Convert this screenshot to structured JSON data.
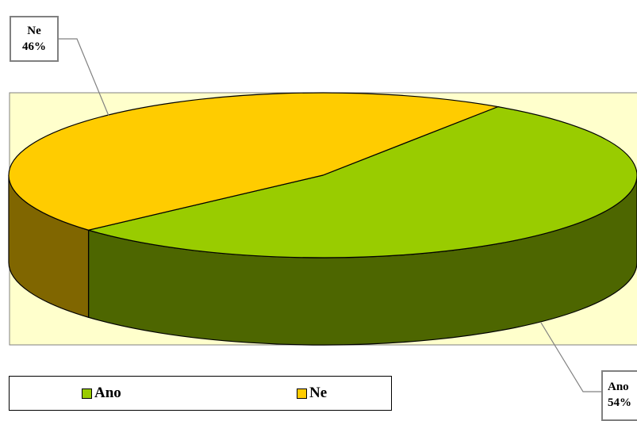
{
  "chart_data": {
    "type": "pie",
    "three_d": true,
    "title": "",
    "slices": [
      {
        "name": "Ano",
        "value": 54,
        "label": "54%",
        "color": "#99CC00",
        "side_color": "#4D6600"
      },
      {
        "name": "Ne",
        "value": 46,
        "label": "46%",
        "color": "#FFCC00",
        "side_color": "#806600"
      }
    ],
    "plot_area_color": "#FFFFCC",
    "legend_position": "bottom",
    "legend": [
      {
        "label": "Ano",
        "color": "#99CC00"
      },
      {
        "label": "Ne",
        "color": "#FFCC00"
      }
    ]
  }
}
